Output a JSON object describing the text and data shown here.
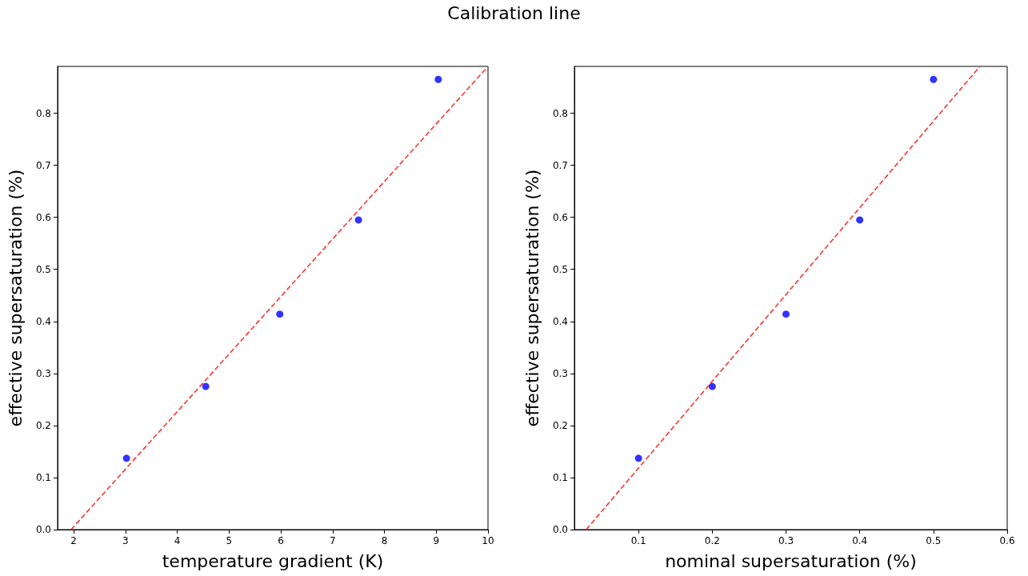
{
  "chart_data": [
    {
      "type": "scatter",
      "title": "Calibration line",
      "xlabel": "temperature gradient (K)",
      "ylabel": "effective supersaturation (%)",
      "xlim": [
        1.69,
        10
      ],
      "xticks": [
        2,
        3,
        4,
        5,
        6,
        7,
        8,
        9,
        10
      ],
      "ylim": [
        0,
        0.89
      ],
      "yticks": [
        {
          "value": 0,
          "label": "0.0"
        },
        0.1,
        0.2,
        0.3,
        0.4,
        0.5,
        0.6,
        0.7,
        0.8
      ],
      "grid": false,
      "marker": "circle",
      "series": [
        {
          "color": "#0000ff",
          "x": [
            3.02,
            4.55,
            5.98,
            7.5,
            9.04
          ],
          "values": [
            0.137,
            0.275,
            0.414,
            0.595,
            0.865
          ]
        },
        {
          "type": "line",
          "color": "#ff3333",
          "line_style": "dashed",
          "marker": "none",
          "x": [
            1.95,
            10
          ],
          "values": [
            0,
            0.89
          ]
        }
      ]
    },
    {
      "type": "scatter",
      "xlabel": "nominal supersaturation (%)",
      "ylabel": "effective supersaturation (%)",
      "xlim": [
        0.013,
        0.6
      ],
      "xticks": [
        0.1,
        0.2,
        0.3,
        0.4,
        0.5,
        0.6
      ],
      "ylim": [
        0,
        0.89
      ],
      "yticks": [
        {
          "value": 0,
          "label": "0.0"
        },
        0.1,
        0.2,
        0.3,
        0.4,
        0.5,
        0.6,
        0.7,
        0.8
      ],
      "grid": false,
      "marker": "circle",
      "series": [
        {
          "color": "#0000ff",
          "x": [
            0.1,
            0.2,
            0.3,
            0.4,
            0.5
          ],
          "values": [
            0.137,
            0.275,
            0.414,
            0.595,
            0.865
          ]
        },
        {
          "type": "line",
          "color": "#ff3333",
          "line_style": "dashed",
          "marker": "none",
          "x": [
            0.029,
            0.563
          ],
          "values": [
            0,
            0.89
          ]
        }
      ]
    }
  ]
}
